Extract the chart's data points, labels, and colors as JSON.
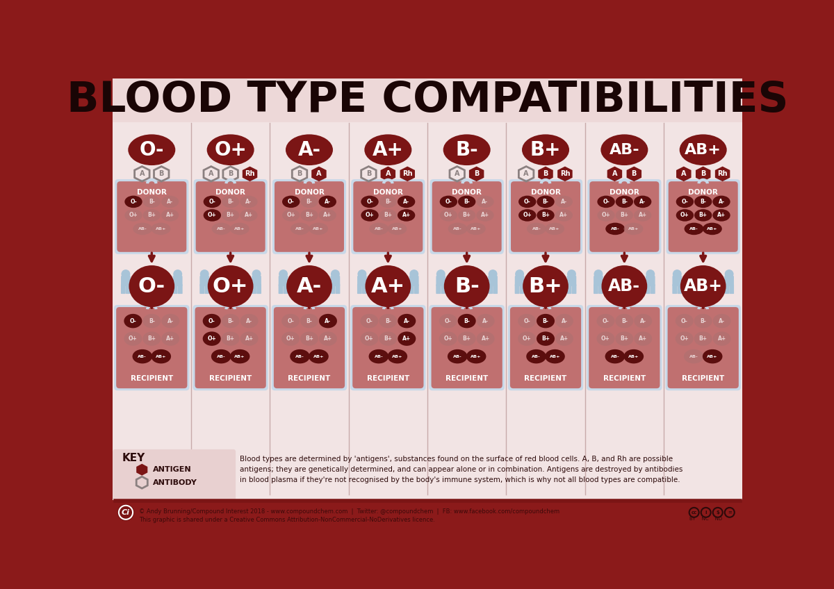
{
  "title": "BLOOD TYPE COMPATIBILITIES",
  "bg_outer": "#8B1A1A",
  "bg_inner": "#F2E4E4",
  "bg_title": "#EDD8D8",
  "dark_red": "#7B1515",
  "blood_types": [
    "O-",
    "O+",
    "A-",
    "A+",
    "B-",
    "B+",
    "AB-",
    "AB+"
  ],
  "antigens": {
    "O-": [],
    "O+": [
      "Rh"
    ],
    "A-": [
      "A"
    ],
    "A+": [
      "A",
      "Rh"
    ],
    "B-": [
      "B"
    ],
    "B+": [
      "B",
      "Rh"
    ],
    "AB-": [
      "A",
      "B"
    ],
    "AB+": [
      "A",
      "B",
      "Rh"
    ]
  },
  "antibodies": {
    "O-": [
      "A",
      "B"
    ],
    "O+": [
      "A",
      "B"
    ],
    "A-": [
      "B"
    ],
    "A+": [
      "B"
    ],
    "B-": [
      "A"
    ],
    "B+": [
      "A"
    ],
    "AB-": [],
    "AB+": []
  },
  "donor_highlight": {
    "O-": [
      "O-"
    ],
    "O+": [
      "O-",
      "O+"
    ],
    "A-": [
      "O-",
      "A-"
    ],
    "A+": [
      "O-",
      "O+",
      "A-",
      "A+"
    ],
    "B-": [
      "O-",
      "B-"
    ],
    "B+": [
      "O-",
      "O+",
      "B-",
      "B+"
    ],
    "AB-": [
      "O-",
      "A-",
      "B-",
      "AB-"
    ],
    "AB+": [
      "O-",
      "O+",
      "A-",
      "A+",
      "B-",
      "B+",
      "AB-",
      "AB+"
    ]
  },
  "recipient_highlight": {
    "O-": [
      "O-",
      "AB-",
      "AB+"
    ],
    "O+": [
      "O-",
      "O+",
      "AB-",
      "AB+"
    ],
    "A-": [
      "A-",
      "AB-",
      "AB+"
    ],
    "A+": [
      "A-",
      "A+",
      "AB-",
      "AB+"
    ],
    "B-": [
      "B-",
      "AB-",
      "AB+"
    ],
    "B+": [
      "B-",
      "B+",
      "AB-",
      "AB+"
    ],
    "AB-": [
      "AB-",
      "AB+"
    ],
    "AB+": [
      "AB+"
    ]
  },
  "footer_text": "© Andy Brunning/Compound Interest 2018 - www.compoundchem.com  |  Twitter: @compoundchem  |  FB: www.facebook.com/compoundchem\nThis graphic is shared under a Creative Commons Attribution-NonCommercial-NoDerivatives licence.",
  "key_text": "Blood types are determined by 'antigens', substances found on the surface of red blood cells. A, B, and Rh are possible\nantigens; they are genetically determined, and can appear alone or in combination. Antigens are destroyed by antibodies\nin blood plasma if they're not recognised by the body's immune system, which is why not all blood types are compatible."
}
